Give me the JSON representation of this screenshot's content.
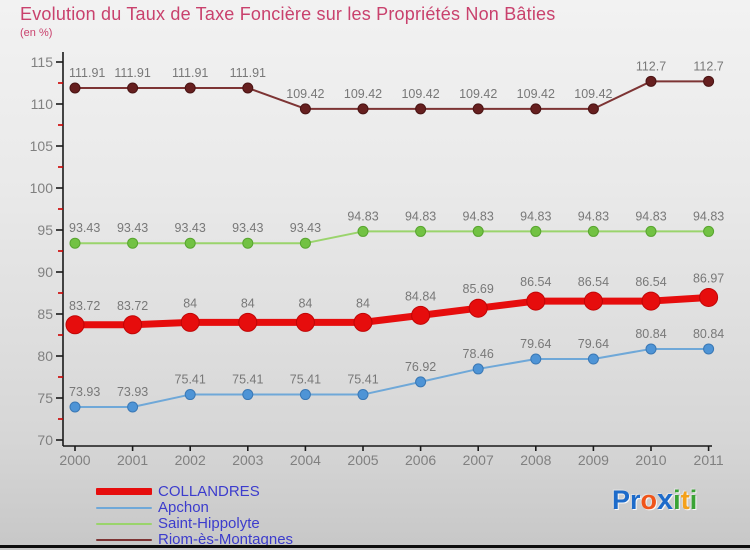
{
  "title": "Evolution du Taux de Taxe Foncière sur les Propriétés Non Bâties",
  "subtitle": "(en %)",
  "colors": {
    "title": "#c9416d",
    "axis": "#1a1a1a",
    "minor_tick": "#cc0000",
    "tick_label": "#808080",
    "data_label": "#787878",
    "legend_text": "#3c3ccd"
  },
  "chart_data": {
    "type": "line",
    "title": "Evolution du Taux de Taxe Foncière sur les Propriétés Non Bâties",
    "subtitle": "(en %)",
    "xlabel": "",
    "ylabel": "",
    "ylim": [
      70,
      115
    ],
    "y_major_step": 5,
    "y_minor_step": 2.5,
    "grid": false,
    "legend_position": "bottom-left",
    "categories": [
      "2000",
      "2001",
      "2002",
      "2003",
      "2004",
      "2005",
      "2006",
      "2007",
      "2008",
      "2009",
      "2010",
      "2011"
    ],
    "series": [
      {
        "name": "COLLANDRES",
        "color": "#e60d0d",
        "marker_fill": "#e60d0d",
        "marker_stroke": "#c00505",
        "stroke_width": 7,
        "marker_r": 9,
        "values": [
          83.72,
          83.72,
          84,
          84,
          84,
          84,
          84.84,
          85.69,
          86.54,
          86.54,
          86.54,
          86.97
        ]
      },
      {
        "name": "Apchon",
        "color": "#6fa8d8",
        "marker_fill": "#4e94d6",
        "marker_stroke": "#3a78b5",
        "stroke_width": 2,
        "marker_r": 5,
        "values": [
          73.93,
          73.93,
          75.41,
          75.41,
          75.41,
          75.41,
          76.92,
          78.46,
          79.64,
          79.64,
          80.84,
          80.84
        ]
      },
      {
        "name": "Saint-Hippolyte",
        "color": "#9ad46c",
        "marker_fill": "#72c243",
        "marker_stroke": "#58a52f",
        "stroke_width": 2,
        "marker_r": 5,
        "values": [
          93.43,
          93.43,
          93.43,
          93.43,
          93.43,
          94.83,
          94.83,
          94.83,
          94.83,
          94.83,
          94.83,
          94.83
        ]
      },
      {
        "name": "Riom-ès-Montagnes",
        "color": "#7d3434",
        "marker_fill": "#661f1f",
        "marker_stroke": "#4a1414",
        "stroke_width": 2,
        "marker_r": 5,
        "values": [
          111.91,
          111.91,
          111.91,
          111.91,
          109.42,
          109.42,
          109.42,
          109.42,
          109.42,
          109.42,
          112.7,
          112.7
        ]
      }
    ]
  },
  "logo": {
    "name": "Proxiti",
    "letters": [
      {
        "ch": "P",
        "color": "#1d6bca",
        "big": false
      },
      {
        "ch": "r",
        "color": "#1d6bca",
        "big": false
      },
      {
        "ch": "o",
        "color": "#f0551a",
        "big": false
      },
      {
        "ch": "x",
        "color": "#1d6bca",
        "big": true
      },
      {
        "ch": "i",
        "color": "#3aa335",
        "big": false
      },
      {
        "ch": "t",
        "color": "#f5a11a",
        "big": false
      },
      {
        "ch": "i",
        "color": "#3aa335",
        "big": false
      }
    ]
  }
}
